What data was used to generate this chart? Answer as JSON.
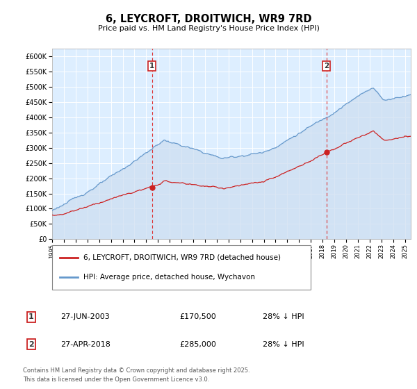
{
  "title": "6, LEYCROFT, DROITWICH, WR9 7RD",
  "subtitle": "Price paid vs. HM Land Registry's House Price Index (HPI)",
  "ylim": [
    0,
    625000
  ],
  "yticks": [
    0,
    50000,
    100000,
    150000,
    200000,
    250000,
    300000,
    350000,
    400000,
    450000,
    500000,
    550000,
    600000
  ],
  "background_color": "#ffffff",
  "plot_bg_color": "#ddeeff",
  "grid_color": "#ffffff",
  "hpi_color": "#6699cc",
  "hpi_fill_color": "#ccddf0",
  "price_color": "#cc2222",
  "sale1_date_x": 2003.49,
  "sale1_price": 170500,
  "sale1_label": "1",
  "sale2_date_x": 2018.32,
  "sale2_price": 285000,
  "sale2_label": "2",
  "legend_label_price": "6, LEYCROFT, DROITWICH, WR9 7RD (detached house)",
  "legend_label_hpi": "HPI: Average price, detached house, Wychavon",
  "table_row1": [
    "1",
    "27-JUN-2003",
    "£170,500",
    "28% ↓ HPI"
  ],
  "table_row2": [
    "2",
    "27-APR-2018",
    "£285,000",
    "28% ↓ HPI"
  ],
  "footnote": "Contains HM Land Registry data © Crown copyright and database right 2025.\nThis data is licensed under the Open Government Licence v3.0.",
  "xmin": 1995,
  "xmax": 2025.5
}
